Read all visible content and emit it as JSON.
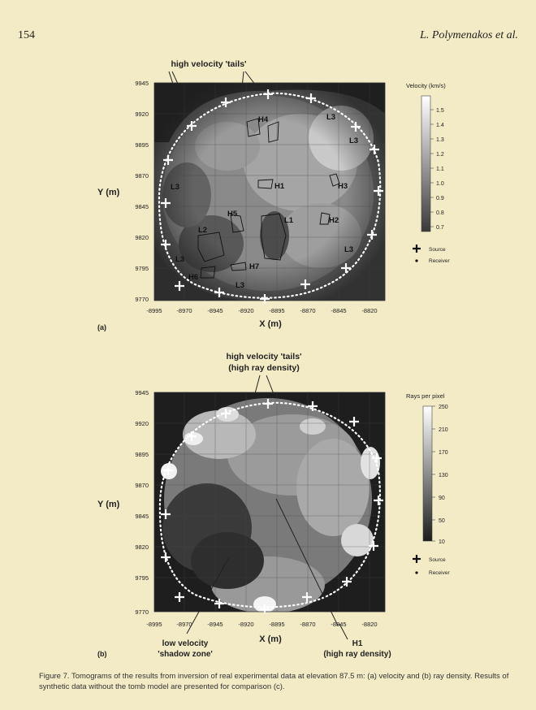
{
  "header": {
    "page_number": "154",
    "authors": "L. Polymenakos et al."
  },
  "panel_a": {
    "tag": "(a)",
    "annotation": "high velocity 'tails'",
    "ylabel": "Y (m)",
    "xlabel": "X (m)",
    "yticks": [
      "9945",
      "9920",
      "9895",
      "9870",
      "9845",
      "9820",
      "9795",
      "9770"
    ],
    "xticks": [
      "-8995",
      "-8970",
      "-8945",
      "-8920",
      "-8895",
      "-8870",
      "-8845",
      "-8820"
    ],
    "regions": [
      "H4",
      "L3",
      "L3",
      "H1",
      "H3",
      "L3",
      "H5",
      "L1",
      "H2",
      "L2",
      "L3",
      "L3",
      "H7",
      "H6",
      "L3"
    ],
    "colorbar": {
      "title": "Velocity (km/s)",
      "ticks": [
        "1.5",
        "1.4",
        "1.3",
        "1.2",
        "1.1",
        "1.0",
        "0.9",
        "0.8",
        "0.7"
      ]
    },
    "legend": {
      "source": "Source",
      "receiver": "Receiver"
    }
  },
  "panel_b": {
    "tag": "(b)",
    "annotation_line1": "high velocity 'tails'",
    "annotation_line2": "(high ray density)",
    "ylabel": "Y (m)",
    "xlabel": "X (m)",
    "yticks": [
      "9945",
      "9920",
      "9895",
      "9870",
      "9845",
      "9820",
      "9795",
      "9770"
    ],
    "xticks": [
      "-8995",
      "-8970",
      "-8945",
      "-8920",
      "-8895",
      "-8870",
      "-8845",
      "-8820"
    ],
    "low_label_line1": "low velocity",
    "low_label_line2": "'shadow zone'",
    "h1_label_line1": "H1",
    "h1_label_line2": "(high ray density)",
    "colorbar": {
      "title": "Rays per pixel",
      "ticks": [
        "250",
        "210",
        "170",
        "130",
        "90",
        "50",
        "10"
      ]
    },
    "legend": {
      "source": "Source",
      "receiver": "Receiver"
    }
  },
  "caption": "Figure 7. Tomograms of the results from inversion of real experimental data at elevation 87.5 m: (a) velocity and (b) ray density. Results of synthetic data without the tomb model are presented for comparison (c)."
}
